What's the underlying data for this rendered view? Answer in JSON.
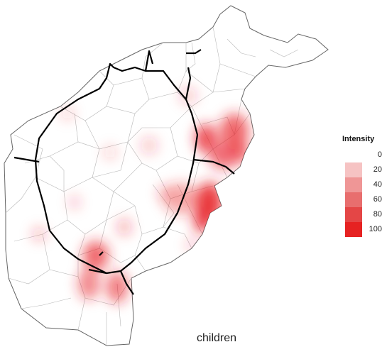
{
  "map": {
    "caption": "children",
    "heat_color": "#e8212a",
    "road_color": "#000000",
    "boundary_color": "#b8b8b8"
  },
  "legend": {
    "title": "Intensity",
    "items": [
      {
        "label": "0",
        "color": "#ffffff"
      },
      {
        "label": "20",
        "color": "#f6c3c3"
      },
      {
        "label": "40",
        "color": "#ef9696"
      },
      {
        "label": "60",
        "color": "#e86e6e"
      },
      {
        "label": "80",
        "color": "#e44646"
      },
      {
        "label": "100",
        "color": "#e62222"
      }
    ]
  }
}
